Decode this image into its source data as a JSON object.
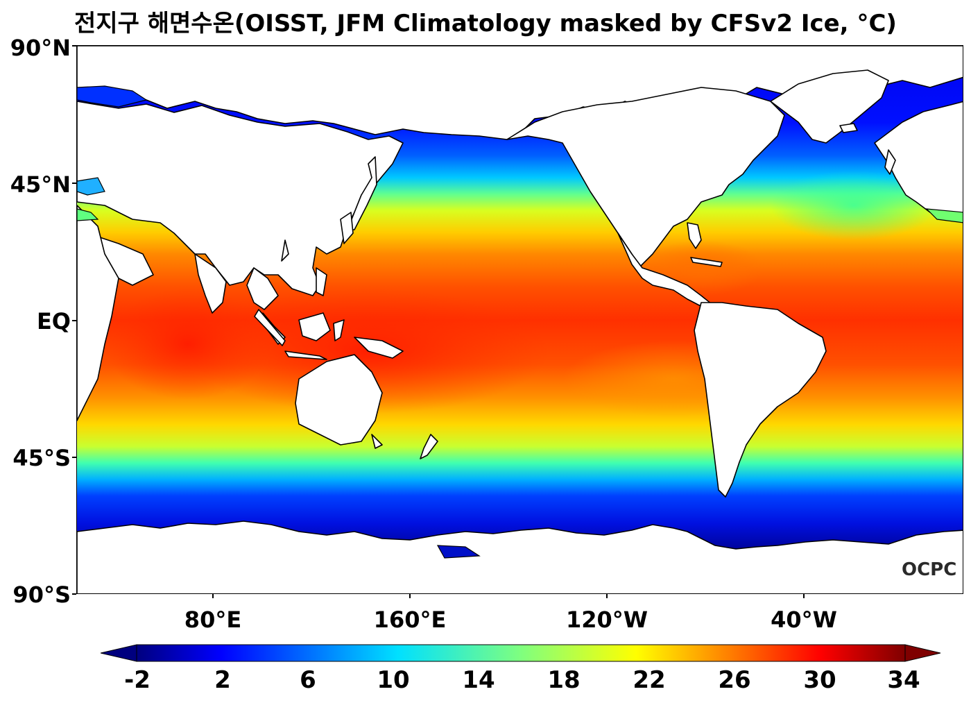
{
  "title": "전지구 해면수온(OISST, JFM Climatology masked by CFSv2 Ice, °C)",
  "logo": "OCPC",
  "lat_labels": [
    "90°N",
    "45°N",
    "EQ",
    "45°S",
    "90°S"
  ],
  "lon_labels": [
    "80°E",
    "160°E",
    "120°W",
    "40°W"
  ],
  "colorbar": {
    "ticks": [
      "-2",
      "2",
      "6",
      "10",
      "14",
      "18",
      "22",
      "26",
      "30",
      "34"
    ],
    "range": [
      -2,
      34
    ],
    "extend": "both",
    "colormap": "jet",
    "colors": [
      "#00007f",
      "#0000ff",
      "#0080ff",
      "#00ffff",
      "#7fff7f",
      "#ffff00",
      "#ff8000",
      "#ff0000",
      "#7f0000"
    ]
  },
  "map": {
    "projection": "equirectangular",
    "central_longitude": 165,
    "land_color": "#ffffff",
    "coastline_color": "#000000"
  }
}
